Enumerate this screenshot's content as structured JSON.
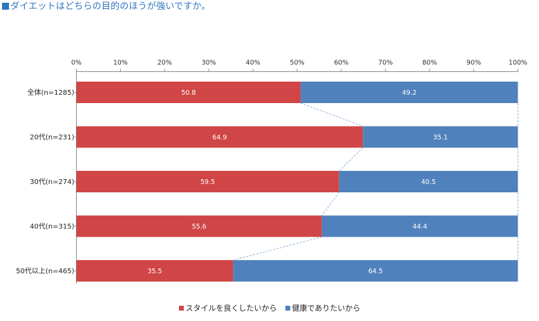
{
  "chart_data": {
    "type": "bar",
    "orientation": "horizontal",
    "stacked": true,
    "percent": true,
    "title": "ダイエットはどちらの目的のほうが強いですか。",
    "categories": [
      "全体(n=1285)",
      "20代(n=231)",
      "30代(n=274)",
      "40代(n=315)",
      "50代以上(n=465)"
    ],
    "series": [
      {
        "name": "スタイルを良くしたいから",
        "color": "#d04545",
        "values": [
          50.8,
          64.9,
          59.5,
          55.6,
          35.5
        ]
      },
      {
        "name": "健康でありたいから",
        "color": "#4f81bd",
        "values": [
          49.2,
          35.1,
          40.5,
          44.4,
          64.5
        ]
      }
    ],
    "xlim": [
      0,
      100
    ],
    "x_ticks": [
      "0%",
      "10%",
      "20%",
      "30%",
      "40%",
      "50%",
      "60%",
      "70%",
      "80%",
      "90%",
      "100%"
    ],
    "x_axis_position": "top",
    "grid": false,
    "series_lines": true,
    "legend_position": "bottom"
  }
}
